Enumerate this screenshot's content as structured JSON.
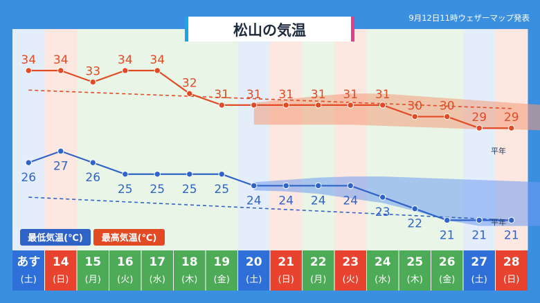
{
  "header": {
    "title": "松山の気温",
    "issued": "9月12日11時ウェザーマップ発表"
  },
  "colors": {
    "frame": "#3a8fe0",
    "high_line": "#e24a24",
    "low_line": "#2f63c8",
    "high_band": "#f39a78",
    "low_band": "#6f9cf0",
    "sat": "#2f6fd8",
    "sun": "#e8432e",
    "weekday": "#4daa57",
    "bg_sat": "#e4eefb",
    "bg_sun": "#fde7e1",
    "bg_weekday": "#e9f5e6"
  },
  "chart_data": {
    "type": "line",
    "x": [
      "あす",
      "14",
      "15",
      "16",
      "17",
      "18",
      "19",
      "20",
      "21",
      "22",
      "23",
      "24",
      "25",
      "26",
      "27",
      "28"
    ],
    "weekdays": [
      "(土)",
      "(日)",
      "(月)",
      "(火)",
      "(水)",
      "(木)",
      "(金)",
      "(土)",
      "(日)",
      "(月)",
      "(火)",
      "(水)",
      "(木)",
      "(金)",
      "(土)",
      "(日)"
    ],
    "day_types": [
      "sat",
      "sun",
      "weekday",
      "weekday",
      "weekday",
      "weekday",
      "weekday",
      "sat",
      "sun",
      "weekday",
      "sun",
      "weekday",
      "weekday",
      "weekday",
      "sat",
      "sun"
    ],
    "series": [
      {
        "name": "最高気温(℃)",
        "values": [
          34,
          34,
          33,
          34,
          34,
          32,
          31,
          31,
          31,
          31,
          31,
          31,
          30,
          30,
          29,
          29
        ]
      },
      {
        "name": "最低気温(℃)",
        "values": [
          26,
          27,
          26,
          25,
          25,
          25,
          25,
          24,
          24,
          24,
          24,
          23,
          22,
          21,
          21,
          21
        ]
      }
    ],
    "normal_label": "平年",
    "normal_high": [
      32.3,
      30.7
    ],
    "normal_low": [
      23.0,
      21.0
    ],
    "high_range": {
      "start_index": 7,
      "upper": [
        31.2,
        31.5,
        31.8,
        32.0,
        32.0,
        31.8,
        31.6,
        31.4,
        31.2,
        31.0
      ],
      "lower": [
        29.3,
        29.3,
        29.3,
        29.3,
        29.2,
        29.1,
        29.0,
        28.9,
        28.9,
        28.8
      ]
    },
    "low_range": {
      "start_index": 7,
      "upper": [
        24.3,
        24.5,
        24.7,
        24.8,
        24.8,
        24.7,
        24.6,
        24.5,
        24.4,
        24.3
      ],
      "lower": [
        23.6,
        23.5,
        23.3,
        22.9,
        22.5,
        21.8,
        21.0,
        20.5,
        20.5,
        20.5
      ]
    },
    "ylim": [
      19.7,
      35.8
    ],
    "legend": [
      "最低気温(℃)",
      "最高気温(℃)"
    ],
    "legend_position": "bottom-left"
  }
}
